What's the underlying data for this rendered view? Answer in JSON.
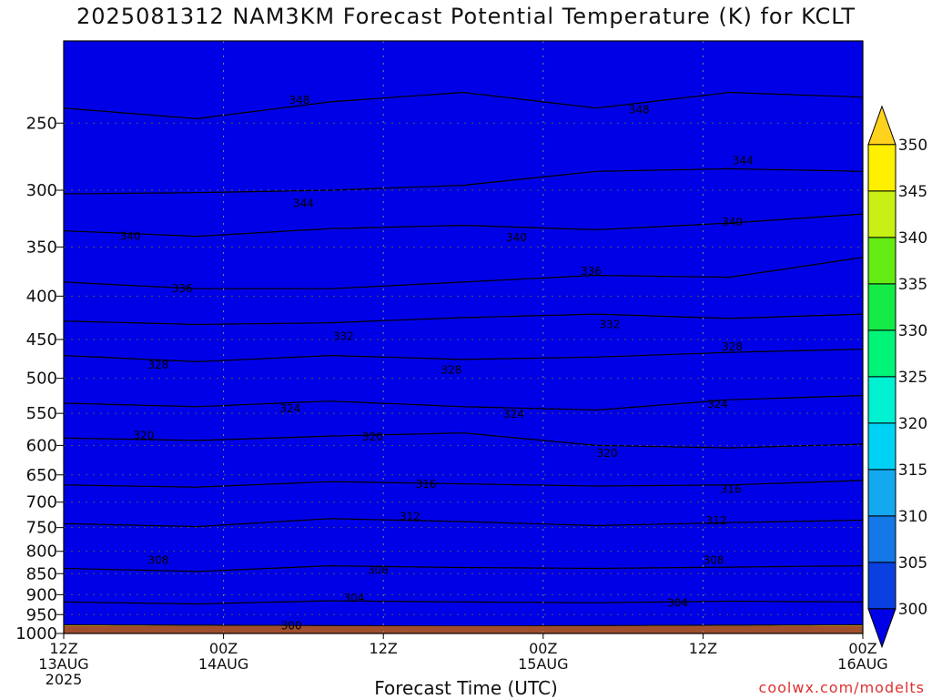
{
  "title": "2025081312 NAM3KM Forecast Potential Temperature (K) for KCLT",
  "credit": "coolwx.com/modelts",
  "chart_data": {
    "type": "contour",
    "title": "2025081312 NAM3KM Forecast Potential Temperature (K) for KCLT",
    "xlabel": "Forecast Time (UTC)",
    "ylabel": "",
    "xlim_hours": [
      0,
      60
    ],
    "ylim_hPa": [
      1000,
      200
    ],
    "y_scale": "log",
    "grid": "dotted",
    "pressure_ticks": [
      250,
      300,
      350,
      400,
      450,
      500,
      550,
      600,
      650,
      700,
      750,
      800,
      850,
      900,
      950,
      1000
    ],
    "time_ticks": [
      {
        "hour": 0,
        "lines": [
          "12Z",
          "13AUG",
          "2025"
        ]
      },
      {
        "hour": 12,
        "lines": [
          "00Z",
          "14AUG"
        ]
      },
      {
        "hour": 24,
        "lines": [
          "12Z"
        ]
      },
      {
        "hour": 36,
        "lines": [
          "00Z",
          "15AUG"
        ]
      },
      {
        "hour": 48,
        "lines": [
          "12Z"
        ]
      },
      {
        "hour": 60,
        "lines": [
          "00Z",
          "16AUG"
        ]
      }
    ],
    "colorbar": {
      "levels": [
        300,
        305,
        310,
        315,
        320,
        325,
        330,
        335,
        340,
        345,
        350
      ],
      "colors": [
        "#0000e6",
        "#0a40e0",
        "#1478e6",
        "#14a8f0",
        "#00d2f5",
        "#00f0d2",
        "#00f578",
        "#14eb46",
        "#64eb14",
        "#c8f014",
        "#fff000",
        "#ffd21e"
      ]
    },
    "isentropes": [
      {
        "level": 300,
        "p_hPa": [
          977,
          978,
          979,
          980,
          979,
          978,
          977
        ]
      },
      {
        "level": 304,
        "p_hPa": [
          918,
          923,
          915,
          918,
          920,
          916,
          918
        ]
      },
      {
        "level": 308,
        "p_hPa": [
          838,
          845,
          832,
          836,
          838,
          835,
          832
        ]
      },
      {
        "level": 312,
        "p_hPa": [
          742,
          748,
          732,
          738,
          746,
          740,
          735
        ]
      },
      {
        "level": 316,
        "p_hPa": [
          668,
          672,
          662,
          666,
          670,
          668,
          660
        ]
      },
      {
        "level": 320,
        "p_hPa": [
          588,
          592,
          585,
          580,
          600,
          604,
          598
        ]
      },
      {
        "level": 324,
        "p_hPa": [
          535,
          540,
          532,
          540,
          545,
          530,
          524
        ]
      },
      {
        "level": 328,
        "p_hPa": [
          470,
          478,
          470,
          475,
          472,
          466,
          462
        ]
      },
      {
        "level": 332,
        "p_hPa": [
          428,
          432,
          430,
          424,
          420,
          425,
          420
        ]
      },
      {
        "level": 336,
        "p_hPa": [
          385,
          392,
          392,
          385,
          378,
          380,
          360
        ]
      },
      {
        "level": 340,
        "p_hPa": [
          335,
          340,
          333,
          330,
          334,
          328,
          320
        ]
      },
      {
        "level": 344,
        "p_hPa": [
          303,
          302,
          300,
          296,
          285,
          283,
          285
        ]
      },
      {
        "level": 348,
        "p_hPa": [
          240,
          247,
          236,
          230,
          240,
          230,
          233
        ]
      }
    ],
    "isentrope_labels": [
      {
        "text": "348",
        "hour": 17.7,
        "p_hPa": 235
      },
      {
        "text": "348",
        "hour": 43.2,
        "p_hPa": 241
      },
      {
        "text": "344",
        "hour": 51.0,
        "p_hPa": 277
      },
      {
        "text": "344",
        "hour": 18.0,
        "p_hPa": 311
      },
      {
        "text": "340",
        "hour": 5.0,
        "p_hPa": 340
      },
      {
        "text": "340",
        "hour": 34.0,
        "p_hPa": 341
      },
      {
        "text": "340",
        "hour": 50.2,
        "p_hPa": 327
      },
      {
        "text": "336",
        "hour": 8.9,
        "p_hPa": 392
      },
      {
        "text": "336",
        "hour": 39.6,
        "p_hPa": 374
      },
      {
        "text": "332",
        "hour": 21.0,
        "p_hPa": 446
      },
      {
        "text": "332",
        "hour": 41.0,
        "p_hPa": 432
      },
      {
        "text": "328",
        "hour": 7.1,
        "p_hPa": 482
      },
      {
        "text": "328",
        "hour": 29.1,
        "p_hPa": 489
      },
      {
        "text": "328",
        "hour": 50.2,
        "p_hPa": 459
      },
      {
        "text": "324",
        "hour": 17.0,
        "p_hPa": 543
      },
      {
        "text": "324",
        "hour": 33.8,
        "p_hPa": 551
      },
      {
        "text": "324",
        "hour": 49.1,
        "p_hPa": 536
      },
      {
        "text": "320",
        "hour": 6.0,
        "p_hPa": 584
      },
      {
        "text": "320",
        "hour": 23.2,
        "p_hPa": 586
      },
      {
        "text": "320",
        "hour": 40.8,
        "p_hPa": 613
      },
      {
        "text": "316",
        "hour": 27.2,
        "p_hPa": 667
      },
      {
        "text": "316",
        "hour": 50.1,
        "p_hPa": 676
      },
      {
        "text": "312",
        "hour": 26.0,
        "p_hPa": 728
      },
      {
        "text": "312",
        "hour": 49.0,
        "p_hPa": 736
      },
      {
        "text": "308",
        "hour": 7.1,
        "p_hPa": 820
      },
      {
        "text": "308",
        "hour": 23.6,
        "p_hPa": 842
      },
      {
        "text": "308",
        "hour": 48.8,
        "p_hPa": 820
      },
      {
        "text": "304",
        "hour": 21.8,
        "p_hPa": 908
      },
      {
        "text": "304",
        "hour": 46.1,
        "p_hPa": 921
      },
      {
        "text": "300",
        "hour": 17.1,
        "p_hPa": 979
      }
    ],
    "surface_pressure_hPa": 980,
    "surface_color": "#a04e2c"
  }
}
